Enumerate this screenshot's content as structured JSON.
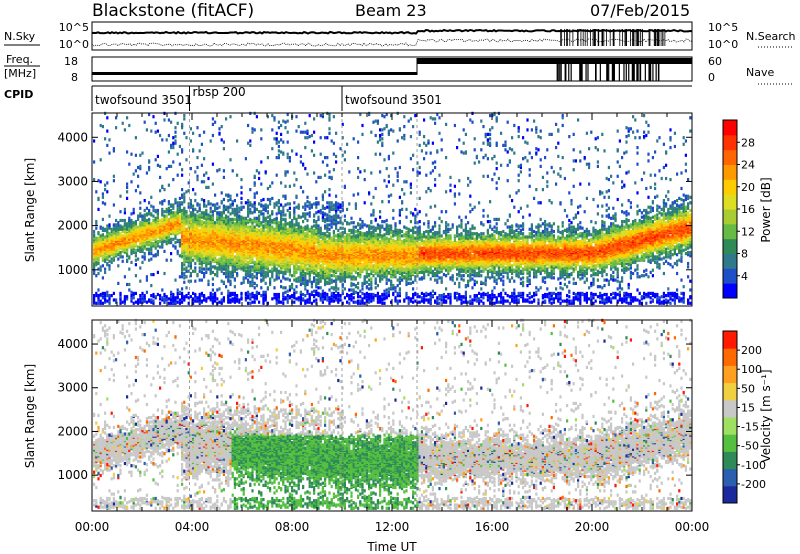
{
  "header": {
    "station": "Blackstone (fitACF)",
    "beam": "Beam 23",
    "date": "07/Feb/2015"
  },
  "nsky_panel": {
    "left_label": "N.Sky",
    "left_ticks": [
      "10^5",
      "10^0"
    ],
    "right_ticks": [
      "10^5",
      "10^0"
    ],
    "right_label": "N.Search"
  },
  "freq_panel": {
    "left_label_1": "Freq.",
    "left_label_2": "[MHz]",
    "left_ticks": [
      "18",
      "8"
    ],
    "right_ticks": [
      "60",
      "0"
    ],
    "right_label": "Nave"
  },
  "cpid_panel": {
    "label": "CPID",
    "segments": [
      {
        "label": "twofsound 3501",
        "start_hour": 0
      },
      {
        "label": "rbsp 200",
        "start_hour": 3.9
      },
      {
        "label": "twofsound 3501",
        "start_hour": 10
      }
    ]
  },
  "chart_data": [
    {
      "type": "heatmap",
      "name": "power",
      "ylabel": "Slant Range [km]",
      "y_ticks": [
        "1000",
        "2000",
        "3000",
        "4000"
      ],
      "y_tick_values": [
        1000,
        2000,
        3000,
        4000
      ],
      "ylim": [
        180,
        4550
      ],
      "colorbar": {
        "label": "Power [dB]",
        "ticks": [
          "28",
          "24",
          "20",
          "16",
          "12",
          "8",
          "4"
        ],
        "tick_values": [
          28,
          24,
          20,
          16,
          12,
          8,
          4
        ],
        "range": [
          0,
          32
        ],
        "colors": [
          "#0000ff",
          "#1f4fc8",
          "#2f7a8a",
          "#2e8b57",
          "#66bb44",
          "#aacc33",
          "#dddd22",
          "#ffcc00",
          "#ff9900",
          "#ff6600",
          "#ff3300",
          "#ff0000"
        ]
      }
    },
    {
      "type": "heatmap",
      "name": "velocity",
      "ylabel": "Slant Range [km]",
      "y_ticks": [
        "1000",
        "2000",
        "3000",
        "4000"
      ],
      "y_tick_values": [
        1000,
        2000,
        3000,
        4000
      ],
      "ylim": [
        180,
        4550
      ],
      "xlabel": "Time UT",
      "x_ticks": [
        "00:00",
        "04:00",
        "08:00",
        "12:00",
        "16:00",
        "20:00",
        "00:00"
      ],
      "x_tick_hours": [
        0,
        4,
        8,
        12,
        16,
        20,
        24
      ],
      "xlim": [
        0,
        24
      ],
      "colorbar": {
        "label": "Velocity [m s⁻¹]",
        "ticks": [
          "200",
          "100",
          "50",
          "15",
          "-15",
          "-50",
          "-100",
          "-200"
        ],
        "colors": [
          "#1a2a9c",
          "#2a5fb0",
          "#2e8b57",
          "#55c040",
          "#a0e060",
          "#c8c8c8",
          "#f0d040",
          "#ffa020",
          "#ff6a00",
          "#ff1a00"
        ]
      }
    }
  ]
}
